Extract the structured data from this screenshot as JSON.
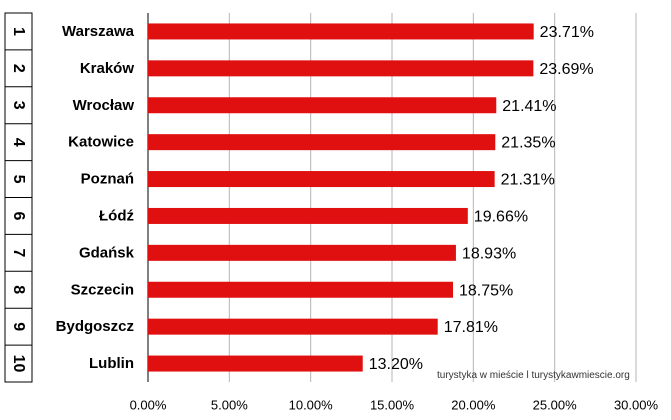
{
  "chart_data": {
    "type": "bar",
    "orientation": "horizontal",
    "title": "",
    "xlabel": "",
    "ylabel": "",
    "ranks": [
      "1",
      "2",
      "3",
      "4",
      "5",
      "6",
      "7",
      "8",
      "9",
      "10"
    ],
    "categories": [
      "Warszawa",
      "Kraków",
      "Wrocław",
      "Katowice",
      "Poznań",
      "Łódź",
      "Gdańsk",
      "Szczecin",
      "Bydgoszcz",
      "Lublin"
    ],
    "values": [
      23.71,
      23.69,
      21.41,
      21.35,
      21.31,
      19.66,
      18.93,
      18.75,
      17.81,
      13.2
    ],
    "value_labels": [
      "23.71%",
      "23.69%",
      "21.41%",
      "21.35%",
      "21.31%",
      "19.66%",
      "18.93%",
      "18.75%",
      "17.81%",
      "13.20%"
    ],
    "xlim": [
      0,
      30
    ],
    "x_ticks": [
      0,
      5,
      10,
      15,
      20,
      25,
      30
    ],
    "x_tick_labels": [
      "0.00%",
      "5.00%",
      "10.00%",
      "15.00%",
      "20.00%",
      "25.00%",
      "30.00%"
    ],
    "grid": "vertical",
    "legend": "none",
    "bar_color": "#e01010",
    "source_note": "turystyka w mieście l turystykawmiescie.org"
  }
}
